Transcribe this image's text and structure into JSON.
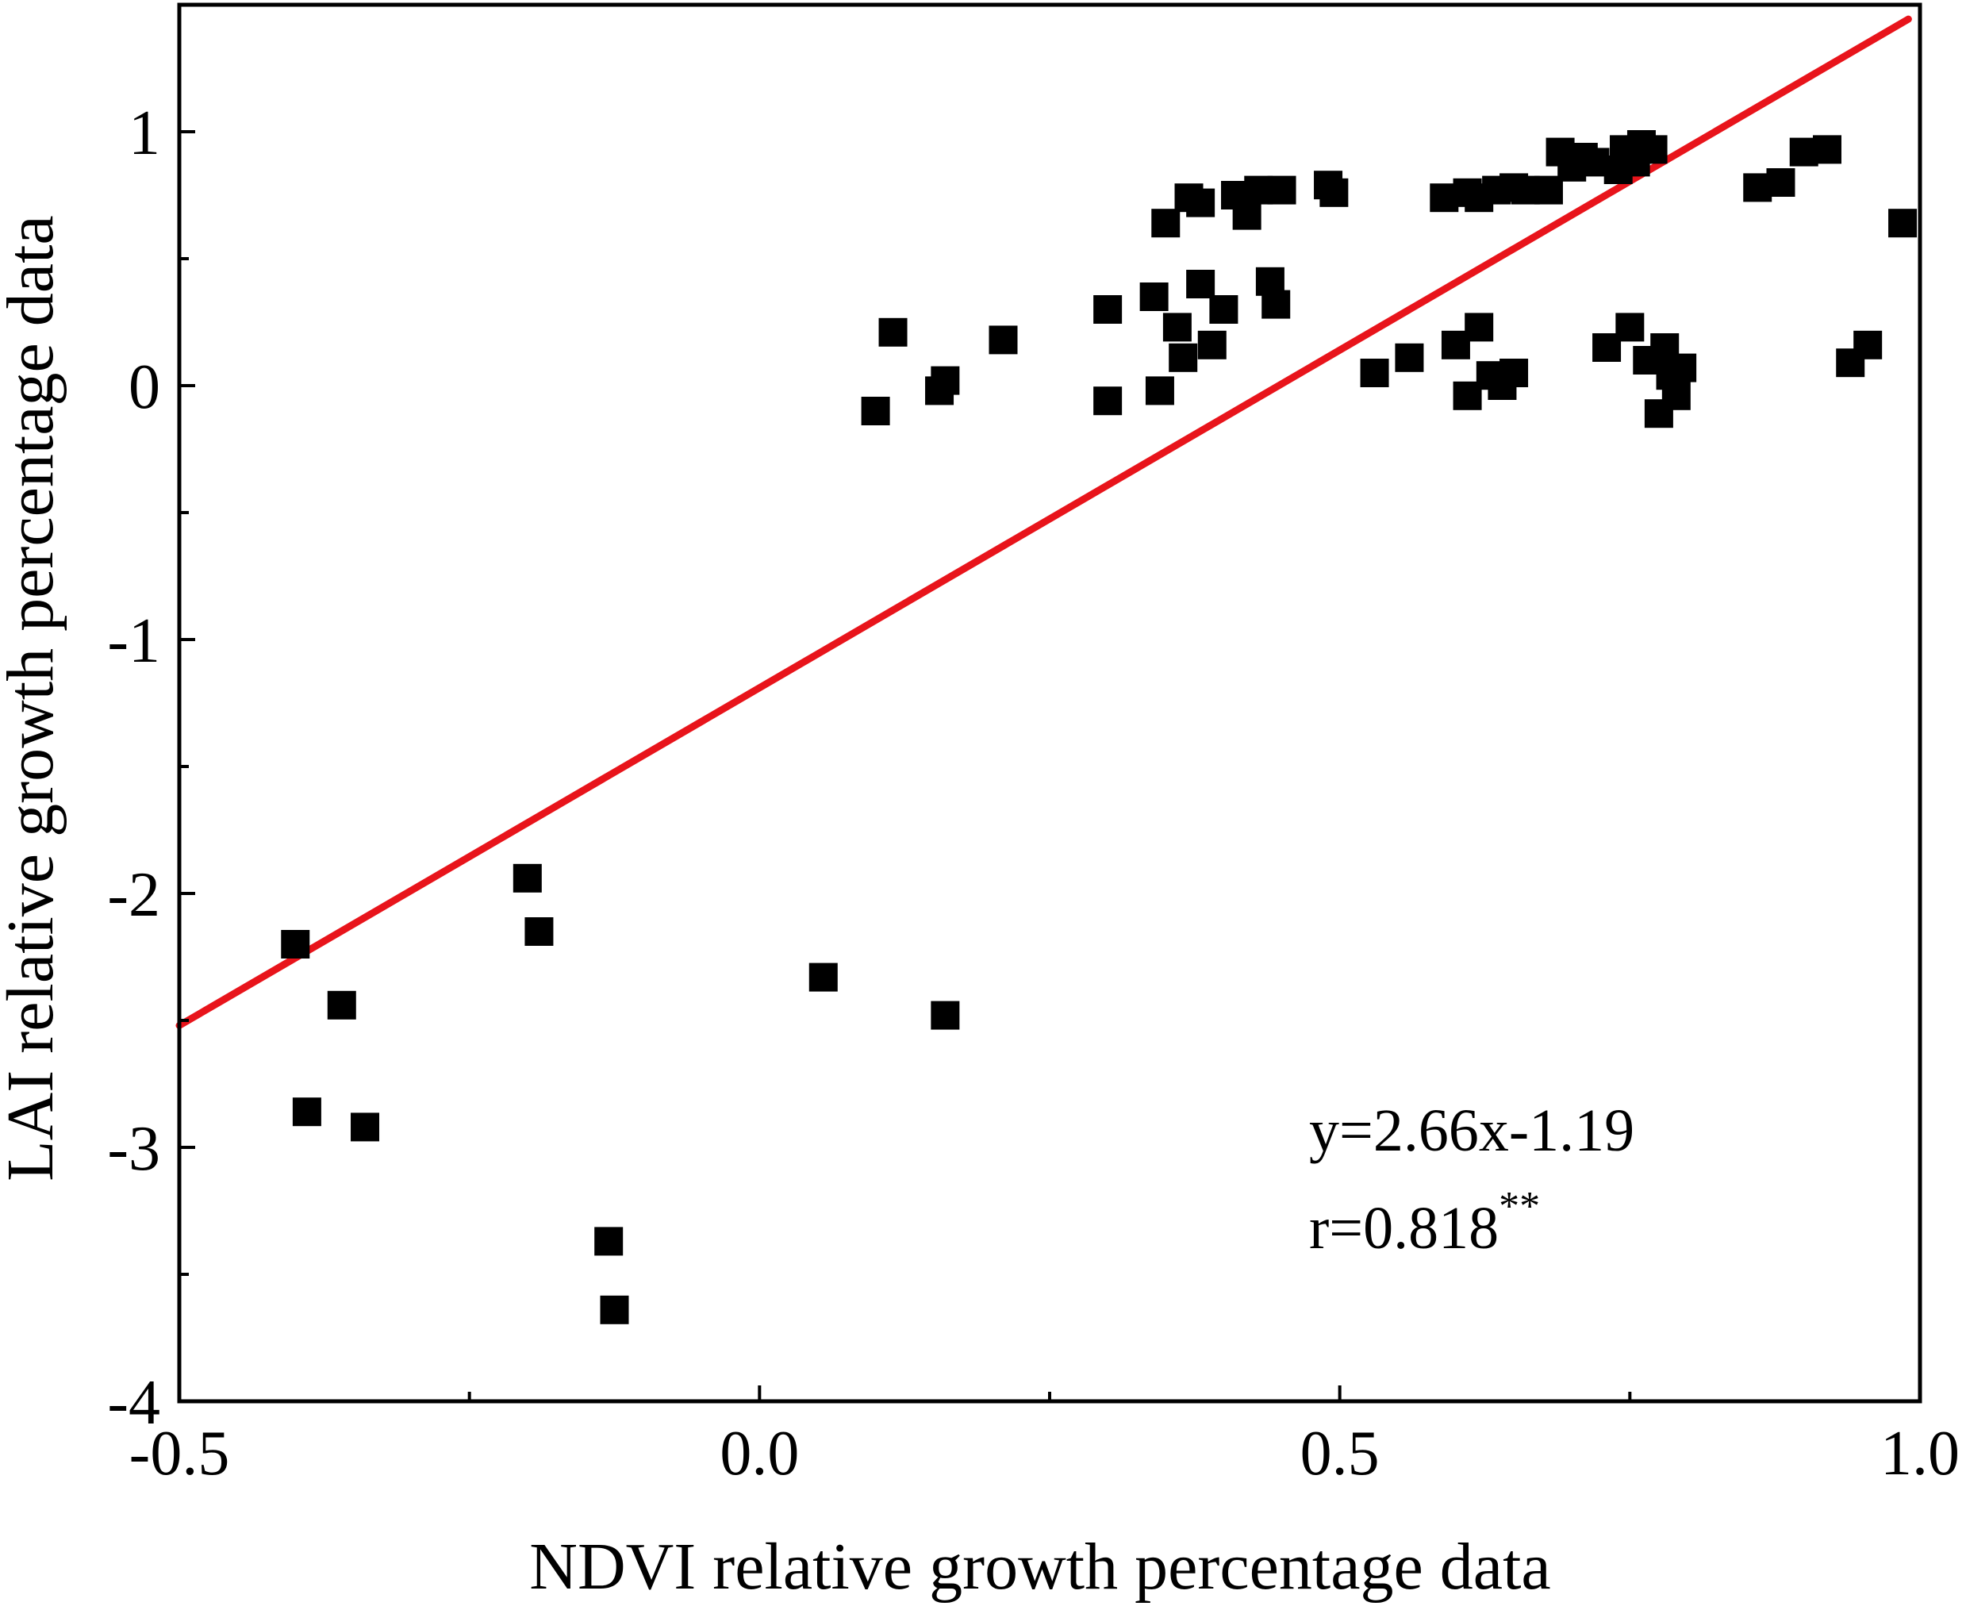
{
  "chart_data": {
    "type": "scatter",
    "title": "",
    "xlabel": "NDVI relative growth percentage data",
    "ylabel": "LAI relative growth percentage data",
    "xlim": [
      -0.5,
      1.0
    ],
    "ylim": [
      -4,
      1.5
    ],
    "x_ticks": [
      -0.5,
      0.0,
      0.5,
      1.0
    ],
    "x_tick_labels": [
      "-0.5",
      "0.0",
      "0.5",
      "1.0"
    ],
    "x_minor_ticks": [
      -0.25,
      0.25,
      0.75
    ],
    "y_ticks": [
      -4,
      -3,
      -2,
      -1,
      0,
      1
    ],
    "y_tick_labels": [
      "-4",
      "-3",
      "-2",
      "-1",
      "0",
      "1"
    ],
    "y_minor_ticks": [
      -3.5,
      -2.5,
      -1.5,
      -0.5,
      0.5
    ],
    "grid": false,
    "fit_line": {
      "slope": 2.66,
      "intercept": -1.19,
      "color": "#e8141b",
      "x_range": [
        -0.5,
        0.99
      ]
    },
    "marker_color": "#000000",
    "annotation": {
      "equation": "y=2.66x-1.19",
      "r_text": "r=0.818",
      "r_superscript": "**"
    },
    "series": [
      {
        "name": "observations",
        "points": [
          [
            -0.4,
            -2.2
          ],
          [
            -0.39,
            -2.86
          ],
          [
            -0.36,
            -2.44
          ],
          [
            -0.34,
            -2.92
          ],
          [
            -0.2,
            -1.94
          ],
          [
            -0.19,
            -2.15
          ],
          [
            -0.13,
            -3.37
          ],
          [
            -0.125,
            -3.64
          ],
          [
            0.055,
            -2.33
          ],
          [
            0.16,
            -2.48
          ],
          [
            0.1,
            -0.1
          ],
          [
            0.115,
            0.21
          ],
          [
            0.155,
            -0.02
          ],
          [
            0.16,
            0.02
          ],
          [
            0.21,
            0.18
          ],
          [
            0.3,
            0.3
          ],
          [
            0.3,
            -0.06
          ],
          [
            0.34,
            0.35
          ],
          [
            0.345,
            -0.02
          ],
          [
            0.35,
            0.64
          ],
          [
            0.36,
            0.23
          ],
          [
            0.365,
            0.11
          ],
          [
            0.37,
            0.74
          ],
          [
            0.38,
            0.72
          ],
          [
            0.38,
            0.4
          ],
          [
            0.39,
            0.16
          ],
          [
            0.4,
            0.3
          ],
          [
            0.41,
            0.75
          ],
          [
            0.42,
            0.67
          ],
          [
            0.43,
            0.77
          ],
          [
            0.44,
            0.41
          ],
          [
            0.445,
            0.32
          ],
          [
            0.45,
            0.77
          ],
          [
            0.49,
            0.79
          ],
          [
            0.495,
            0.76
          ],
          [
            0.53,
            0.05
          ],
          [
            0.56,
            0.11
          ],
          [
            0.59,
            0.74
          ],
          [
            0.6,
            0.16
          ],
          [
            0.61,
            -0.04
          ],
          [
            0.61,
            0.76
          ],
          [
            0.62,
            0.23
          ],
          [
            0.62,
            0.74
          ],
          [
            0.63,
            0.04
          ],
          [
            0.635,
            0.77
          ],
          [
            0.64,
            0.0
          ],
          [
            0.65,
            0.05
          ],
          [
            0.65,
            0.78
          ],
          [
            0.66,
            0.77
          ],
          [
            0.68,
            0.77
          ],
          [
            0.69,
            0.92
          ],
          [
            0.7,
            0.86
          ],
          [
            0.71,
            0.9
          ],
          [
            0.72,
            0.88
          ],
          [
            0.73,
            0.15
          ],
          [
            0.74,
            0.85
          ],
          [
            0.745,
            0.93
          ],
          [
            0.75,
            0.23
          ],
          [
            0.755,
            0.88
          ],
          [
            0.76,
            0.95
          ],
          [
            0.765,
            0.1
          ],
          [
            0.77,
            0.93
          ],
          [
            0.775,
            -0.11
          ],
          [
            0.78,
            0.15
          ],
          [
            0.785,
            0.04
          ],
          [
            0.79,
            -0.04
          ],
          [
            0.795,
            0.07
          ],
          [
            0.86,
            0.78
          ],
          [
            0.88,
            0.8
          ],
          [
            0.9,
            0.92
          ],
          [
            0.92,
            0.93
          ],
          [
            0.94,
            0.09
          ],
          [
            0.955,
            0.16
          ],
          [
            0.985,
            0.64
          ]
        ]
      }
    ]
  }
}
